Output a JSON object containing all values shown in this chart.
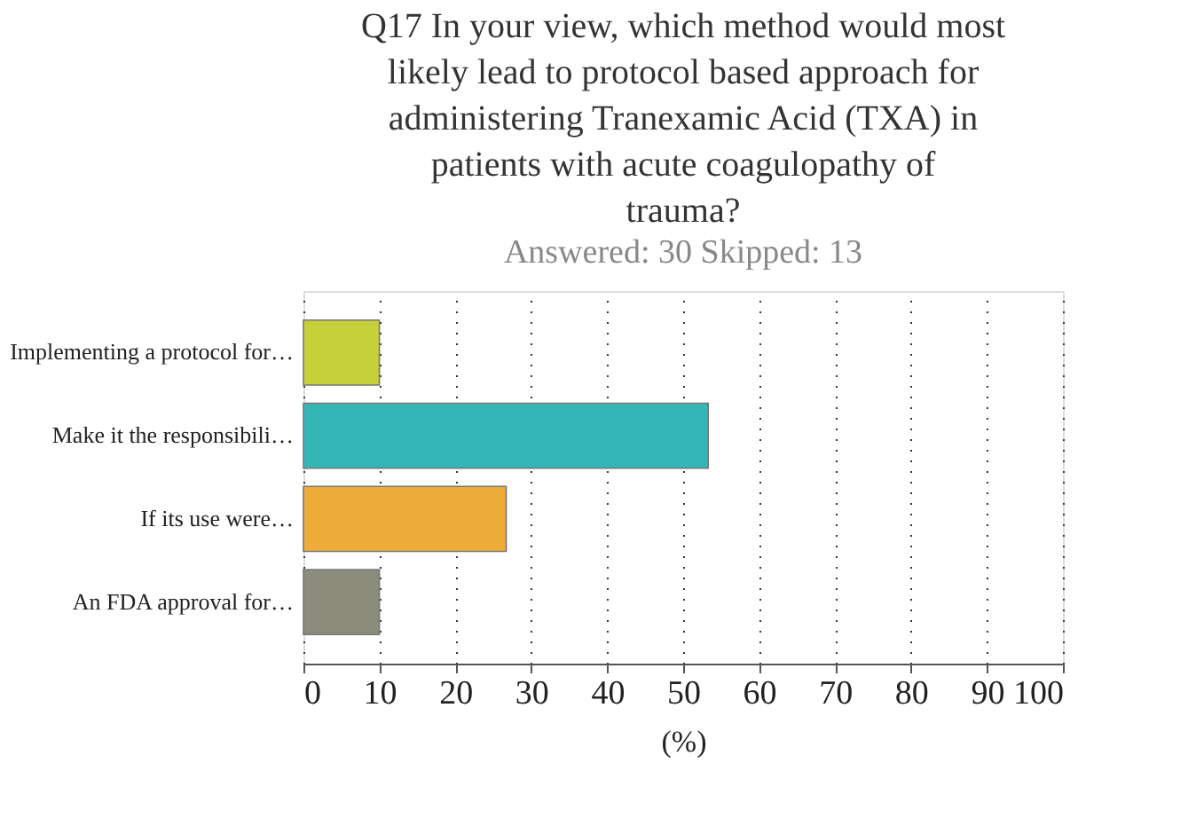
{
  "chart_data": {
    "type": "bar",
    "orientation": "horizontal",
    "title": "Q17 In your view, which method would most likely lead to protocol based approach for administering Tranexamic Acid (TXA) in patients with acute coagulopathy of trauma?",
    "subtitle": "Answered: 30    Skipped: 13",
    "categories": [
      "Implementing a protocol for…",
      "Make it the responsibili…",
      "If its use were…",
      "An FDA approval for…"
    ],
    "values": [
      10,
      53.3,
      26.7,
      10
    ],
    "colors": [
      "#c6d03b",
      "#35b6b6",
      "#eeac38",
      "#8b8c7c"
    ],
    "xlabel": "(%)",
    "xlim": [
      0,
      100
    ],
    "xticks": [
      0,
      10,
      20,
      30,
      40,
      50,
      60,
      70,
      80,
      90,
      100
    ],
    "grid": "x",
    "legend": false
  }
}
